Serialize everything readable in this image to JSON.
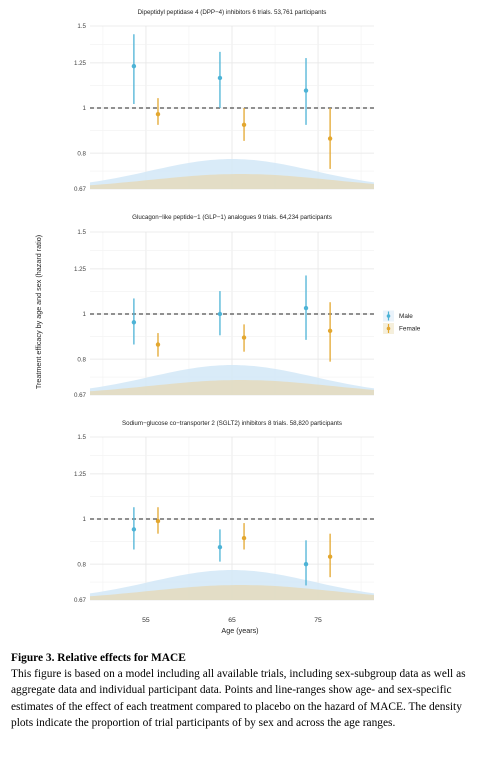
{
  "chart_data": {
    "type": "scatter",
    "ylabel": "Treatment efficacy by age and sex (hazard ratio)",
    "xlabel": "Age (years)",
    "x_ticks": [
      55,
      65,
      75
    ],
    "y_ticks": [
      0.67,
      0.8,
      1,
      1.25,
      1.5
    ],
    "y_tick_labels": [
      "0.67",
      "0.8",
      "1",
      "1.25",
      "1.5"
    ],
    "y_scale": "log",
    "ylim": [
      0.67,
      1.5
    ],
    "xlim": [
      48.5,
      81.5
    ],
    "reference_line": 1,
    "legend": {
      "position": "right",
      "items": [
        "Male",
        "Female"
      ]
    },
    "colors": {
      "Male": "#4db3d6",
      "Female": "#e3a72f",
      "male_density": "#d2e7f7",
      "female_density": "#e3dcc0"
    },
    "grid": true,
    "panels": [
      {
        "title": "Dipeptidyl peptidase 4 (DPP−4) inhibitors 6 trials. 53,761 participants",
        "series": [
          {
            "name": "Male",
            "x": [
              53.6,
              63.6,
              73.6
            ],
            "y": [
              1.23,
              1.16,
              1.09
            ],
            "lower": [
              1.02,
              1.0,
              0.92
            ],
            "upper": [
              1.44,
              1.32,
              1.28
            ]
          },
          {
            "name": "Female",
            "x": [
              56.4,
              66.4,
              76.4
            ],
            "y": [
              0.97,
              0.92,
              0.86
            ],
            "lower": [
              0.92,
              0.85,
              0.74
            ],
            "upper": [
              1.05,
              1.0,
              1.0
            ]
          }
        ]
      },
      {
        "title": "Glucagon−like peptide−1 (GLP−1) analogues 9 trials. 64,234 participants",
        "series": [
          {
            "name": "Male",
            "x": [
              53.6,
              63.6,
              73.6
            ],
            "y": [
              0.96,
              1.0,
              1.03
            ],
            "lower": [
              0.86,
              0.9,
              0.88
            ],
            "upper": [
              1.08,
              1.12,
              1.21
            ]
          },
          {
            "name": "Female",
            "x": [
              56.4,
              66.4,
              76.4
            ],
            "y": [
              0.86,
              0.89,
              0.92
            ],
            "lower": [
              0.81,
              0.83,
              0.79
            ],
            "upper": [
              0.91,
              0.95,
              1.06
            ]
          }
        ]
      },
      {
        "title": "Sodium−glucose co−transporter 2 (SGLT2) inhibitors 8 trials. 58,820 participants",
        "series": [
          {
            "name": "Male",
            "x": [
              53.6,
              63.6,
              73.6
            ],
            "y": [
              0.95,
              0.87,
              0.8
            ],
            "lower": [
              0.86,
              0.81,
              0.72
            ],
            "upper": [
              1.06,
              0.95,
              0.9
            ]
          },
          {
            "name": "Female",
            "x": [
              56.4,
              66.4,
              76.4
            ],
            "y": [
              0.99,
              0.91,
              0.83
            ],
            "lower": [
              0.93,
              0.86,
              0.75
            ],
            "upper": [
              1.06,
              0.98,
              0.93
            ]
          }
        ]
      }
    ]
  },
  "caption": {
    "title": "Figure 3. Relative effects for MACE",
    "body": "This figure is based on a model including all available trials, including sex-subgroup data as well as aggregate data and individual participant data. Points and line-ranges show age- and sex-specific estimates of the effect of each treatment compared to placebo on the hazard of MACE. The density plots indicate the proportion of trial participants of by sex and across the age ranges."
  }
}
